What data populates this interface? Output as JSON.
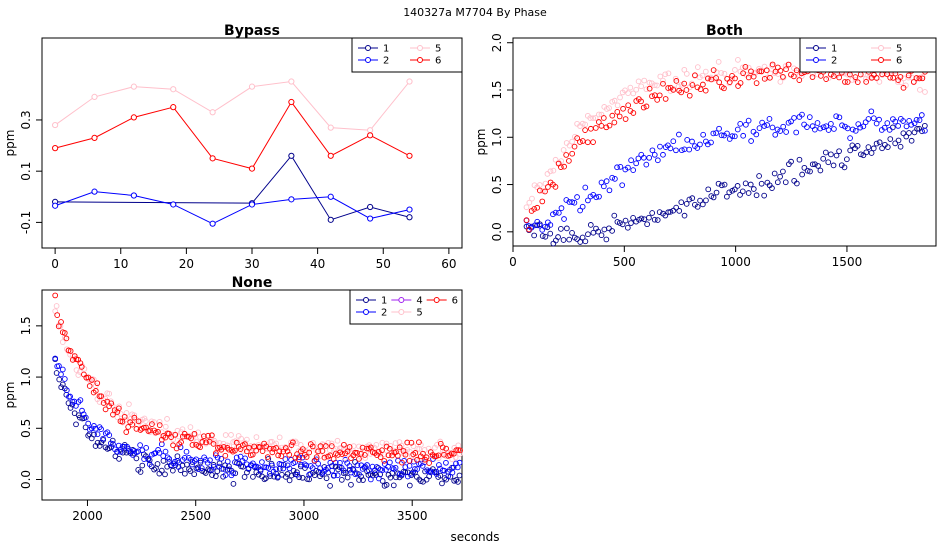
{
  "figure": {
    "suptitle": "140327a    M7704   By Phase",
    "xlabel": "seconds"
  },
  "chart_data": [
    {
      "id": "bypass",
      "type": "line",
      "title": "Bypass",
      "ylabel": "ppm",
      "xlim": [
        -2,
        62
      ],
      "ylim": [
        -0.2,
        0.62
      ],
      "xticks": [
        0,
        10,
        20,
        30,
        40,
        50,
        60
      ],
      "yticks": [
        -0.1,
        0.1,
        0.3
      ],
      "legend": {
        "position": "top-right",
        "ncol": 2,
        "entries": [
          "1",
          "2",
          "5",
          "6"
        ]
      },
      "series": [
        {
          "name": "1",
          "color": "#00008b",
          "x": [
            0,
            30,
            36,
            42,
            48,
            54
          ],
          "y": [
            -0.02,
            -0.025,
            0.16,
            -0.09,
            -0.04,
            -0.08
          ]
        },
        {
          "name": "2",
          "color": "#0000ff",
          "x": [
            0,
            6,
            12,
            18,
            24,
            30,
            36,
            42,
            48,
            54
          ],
          "y": [
            -0.035,
            0.02,
            0.005,
            -0.03,
            -0.105,
            -0.03,
            -0.01,
            0.0,
            -0.085,
            -0.05
          ]
        },
        {
          "name": "5",
          "color": "#ffc0cb",
          "x": [
            0,
            6,
            12,
            18,
            24,
            30,
            36,
            42,
            48,
            54
          ],
          "y": [
            0.28,
            0.39,
            0.43,
            0.42,
            0.33,
            0.43,
            0.45,
            0.27,
            0.26,
            0.45
          ]
        },
        {
          "name": "6",
          "color": "#ff0000",
          "x": [
            0,
            6,
            12,
            18,
            24,
            30,
            36,
            42,
            48,
            54
          ],
          "y": [
            0.19,
            0.23,
            0.31,
            0.35,
            0.15,
            0.11,
            0.37,
            0.16,
            0.24,
            0.16
          ]
        }
      ]
    },
    {
      "id": "both",
      "type": "scatter",
      "title": "Both",
      "ylabel": "ppm",
      "xlim": [
        0,
        1900
      ],
      "ylim": [
        -0.15,
        2.05
      ],
      "xticks": [
        0,
        500,
        1000,
        1500
      ],
      "yticks": [
        0.0,
        0.5,
        1.0,
        1.5,
        2.0
      ],
      "legend": {
        "position": "top-right",
        "ncol": 2,
        "entries": [
          "1",
          "2",
          "5",
          "6"
        ]
      },
      "series": [
        {
          "name": "1",
          "color": "#00008b",
          "x": [
            60,
            150,
            300,
            450,
            550,
            700,
            850,
            1000,
            1150,
            1300,
            1450,
            1600,
            1750,
            1850
          ],
          "y": [
            0.0,
            -0.05,
            -0.05,
            0.1,
            0.05,
            0.25,
            0.35,
            0.45,
            0.5,
            0.65,
            0.8,
            0.9,
            1.0,
            1.05
          ]
        },
        {
          "name": "2",
          "color": "#0000ff",
          "x": [
            60,
            150,
            300,
            450,
            550,
            700,
            850,
            1000,
            1150,
            1300,
            1450,
            1600,
            1750,
            1850
          ],
          "y": [
            0.0,
            0.1,
            0.3,
            0.55,
            0.75,
            0.9,
            1.0,
            1.05,
            1.1,
            1.12,
            1.12,
            1.15,
            1.15,
            1.15
          ]
        },
        {
          "name": "5",
          "color": "#ffc0cb",
          "x": [
            60,
            150,
            300,
            450,
            550,
            700,
            850,
            1000,
            1150,
            1300,
            1450,
            1600,
            1750,
            1850
          ],
          "y": [
            0.3,
            0.6,
            1.1,
            1.35,
            1.5,
            1.6,
            1.65,
            1.68,
            1.7,
            1.7,
            1.68,
            1.65,
            1.62,
            1.6
          ]
        },
        {
          "name": "6",
          "color": "#ff0000",
          "x": [
            60,
            150,
            300,
            450,
            550,
            700,
            850,
            1000,
            1150,
            1300,
            1450,
            1600,
            1750,
            1850
          ],
          "y": [
            0.1,
            0.45,
            0.95,
            1.2,
            1.35,
            1.5,
            1.58,
            1.63,
            1.66,
            1.68,
            1.68,
            1.67,
            1.65,
            1.63
          ]
        }
      ]
    },
    {
      "id": "none",
      "type": "scatter",
      "title": "None",
      "ylabel": "ppm",
      "xlim": [
        1790,
        3730
      ],
      "ylim": [
        -0.2,
        1.85
      ],
      "xticks": [
        2000,
        2500,
        3000,
        3500
      ],
      "yticks": [
        0.0,
        0.5,
        1.0,
        1.5
      ],
      "legend": {
        "position": "top-right",
        "ncol": 3,
        "entries": [
          "1",
          "2",
          "4",
          "5",
          "6"
        ]
      },
      "series": [
        {
          "name": "1",
          "color": "#00008b",
          "x": [
            1850,
            1900,
            2000,
            2100,
            2200,
            2400,
            2600,
            2800,
            3000,
            3200,
            3400,
            3600,
            3720
          ],
          "y": [
            1.15,
            0.8,
            0.45,
            0.3,
            0.2,
            0.12,
            0.1,
            0.08,
            0.06,
            0.05,
            0.04,
            0.03,
            0.03
          ]
        },
        {
          "name": "2",
          "color": "#0000ff",
          "x": [
            1850,
            1900,
            2000,
            2100,
            2200,
            2400,
            2600,
            2800,
            3000,
            3200,
            3400,
            3600,
            3720
          ],
          "y": [
            1.2,
            0.9,
            0.55,
            0.4,
            0.3,
            0.2,
            0.16,
            0.14,
            0.12,
            0.11,
            0.1,
            0.1,
            0.1
          ]
        },
        {
          "name": "4",
          "color": "#a020f0",
          "x": [],
          "y": []
        },
        {
          "name": "5",
          "color": "#ffc0cb",
          "x": [
            1850,
            1900,
            2000,
            2100,
            2200,
            2400,
            2600,
            2800,
            3000,
            3200,
            3400,
            3600,
            3720
          ],
          "y": [
            1.75,
            1.3,
            0.95,
            0.75,
            0.6,
            0.45,
            0.38,
            0.33,
            0.3,
            0.29,
            0.28,
            0.27,
            0.27
          ]
        },
        {
          "name": "6",
          "color": "#ff0000",
          "x": [
            1850,
            1900,
            2000,
            2100,
            2200,
            2400,
            2600,
            2800,
            3000,
            3200,
            3400,
            3600,
            3720
          ],
          "y": [
            1.75,
            1.35,
            0.95,
            0.7,
            0.55,
            0.4,
            0.33,
            0.3,
            0.28,
            0.27,
            0.26,
            0.25,
            0.25
          ]
        }
      ]
    }
  ]
}
